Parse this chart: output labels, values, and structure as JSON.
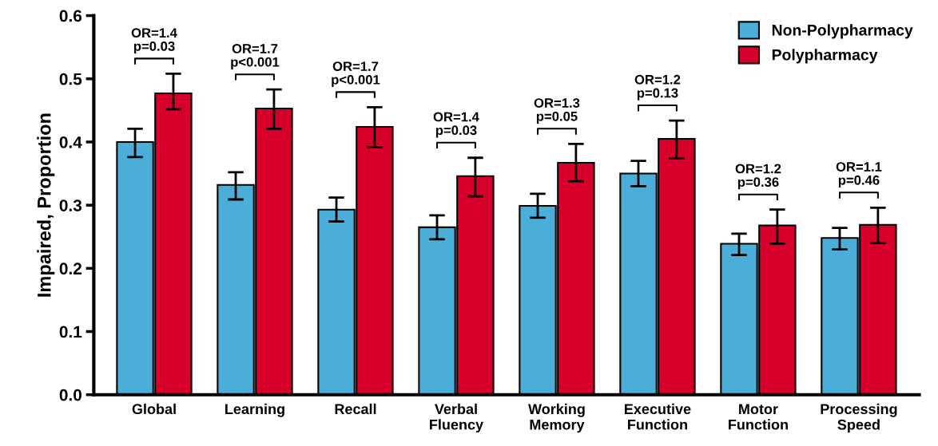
{
  "chart_data": {
    "type": "bar",
    "ylabel": "Impaired, Proportion",
    "categories": [
      "Global",
      "Learning",
      "Recall",
      "Verbal\nFluency",
      "Working\nMemory",
      "Executive\nFunction",
      "Motor\nFunction",
      "Processing\nSpeed"
    ],
    "series": [
      {
        "name": "Non-Polypharmacy",
        "color": "#4aaed9",
        "values": [
          0.4,
          0.332,
          0.293,
          0.265,
          0.299,
          0.35,
          0.239,
          0.248
        ],
        "errors": [
          [
            0.376,
            0.421
          ],
          [
            0.309,
            0.352
          ],
          [
            0.274,
            0.312
          ],
          [
            0.246,
            0.284
          ],
          [
            0.28,
            0.318
          ],
          [
            0.33,
            0.37
          ],
          [
            0.221,
            0.255
          ],
          [
            0.23,
            0.264
          ]
        ]
      },
      {
        "name": "Polypharmacy",
        "color": "#d6002a",
        "values": [
          0.477,
          0.453,
          0.424,
          0.346,
          0.367,
          0.405,
          0.268,
          0.269
        ],
        "errors": [
          [
            0.452,
            0.508
          ],
          [
            0.421,
            0.483
          ],
          [
            0.392,
            0.455
          ],
          [
            0.314,
            0.375
          ],
          [
            0.338,
            0.397
          ],
          [
            0.374,
            0.434
          ],
          [
            0.239,
            0.293
          ],
          [
            0.24,
            0.296
          ]
        ]
      }
    ],
    "ylim": [
      0,
      0.6
    ],
    "yticks": [
      {
        "value": 0,
        "label": "0.0"
      },
      0.1,
      0.2,
      0.3,
      0.4,
      0.5,
      0.6
    ],
    "legend": "top right",
    "grid": false,
    "annotations": [
      "OR=1.4\np=0.03",
      "OR=1.7\np<0.001",
      "OR=1.7\np<0.001",
      "OR=1.4\np=0.03",
      "OR=1.3\np=0.05",
      "OR=1.2\np=0.13",
      "OR=1.2\np=0.36",
      "OR=1.1\np=0.46"
    ]
  }
}
